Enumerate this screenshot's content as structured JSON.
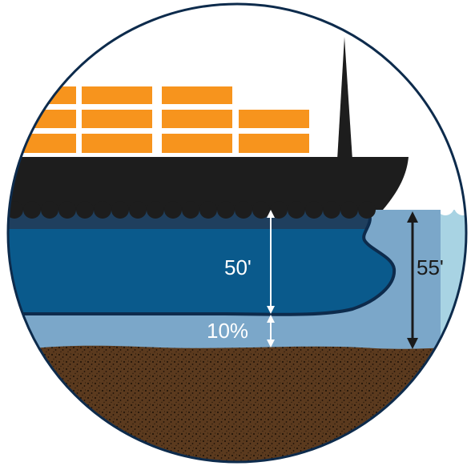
{
  "labels": {
    "draft": "50'",
    "clearance": "10%",
    "depth": "55'"
  },
  "colors": {
    "sky": "#ffffff",
    "water_light": "#a8d3e3",
    "water_column": "#7ba7c9",
    "hull_dark": "#1d1d1d",
    "hull_submerged": "#0a5a8c",
    "hull_waterline": "#1f3f5e",
    "cargo": "#f7941d",
    "seabed": "#5b3a1e",
    "outline": "#0d2b4c",
    "arrow_light": "#ffffff",
    "arrow_dark": "#1a1a1a"
  },
  "icons": {
    "ship": "cargo-ship-icon",
    "seabed": "seabed-sediment"
  }
}
